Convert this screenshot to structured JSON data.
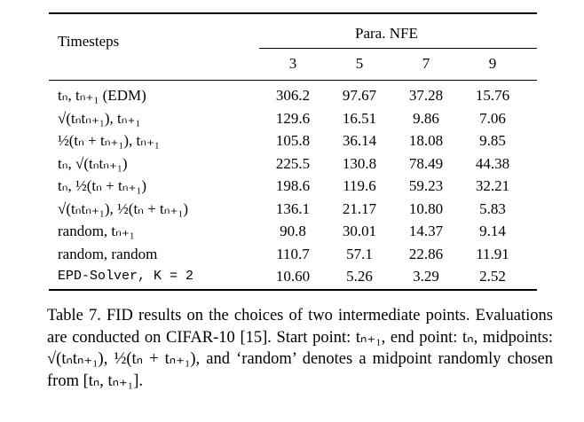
{
  "table": {
    "header": {
      "row_title": "Timesteps",
      "group_title": "Para. NFE",
      "columns": [
        "3",
        "5",
        "7",
        "9"
      ]
    },
    "rows": [
      {
        "label": "tₙ, tₙ₊₁ (EDM)",
        "values": [
          "306.2",
          "97.67",
          "37.28",
          "15.76"
        ]
      },
      {
        "label": "√(tₙtₙ₊₁), tₙ₊₁",
        "values": [
          "129.6",
          "16.51",
          "9.86",
          "7.06"
        ]
      },
      {
        "label": "½(tₙ + tₙ₊₁), tₙ₊₁",
        "values": [
          "105.8",
          "36.14",
          "18.08",
          "9.85"
        ]
      },
      {
        "label": "tₙ, √(tₙtₙ₊₁)",
        "values": [
          "225.5",
          "130.8",
          "78.49",
          "44.38"
        ]
      },
      {
        "label": "tₙ, ½(tₙ + tₙ₊₁)",
        "values": [
          "198.6",
          "119.6",
          "59.23",
          "32.21"
        ]
      },
      {
        "label": "√(tₙtₙ₊₁), ½(tₙ + tₙ₊₁)",
        "values": [
          "136.1",
          "21.17",
          "10.80",
          "5.83"
        ]
      },
      {
        "label": "random, tₙ₊₁",
        "values": [
          "90.8",
          "30.01",
          "14.37",
          "9.14"
        ]
      },
      {
        "label": "random, random",
        "values": [
          "110.7",
          "57.1",
          "22.86",
          "11.91"
        ]
      },
      {
        "label": "EPD-Solver, K = 2",
        "values": [
          "10.60",
          "5.26",
          "3.29",
          "2.52"
        ]
      }
    ]
  },
  "caption": "Table 7. FID results on the choices of two intermediate points. Evaluations are conducted on CIFAR-10 [15]. Start point: tₙ₊₁, end point: tₙ, midpoints: √(tₙtₙ₊₁), ½(tₙ + tₙ₊₁), and ‘random’ denotes a midpoint randomly chosen from [tₙ, tₙ₊₁]."
}
